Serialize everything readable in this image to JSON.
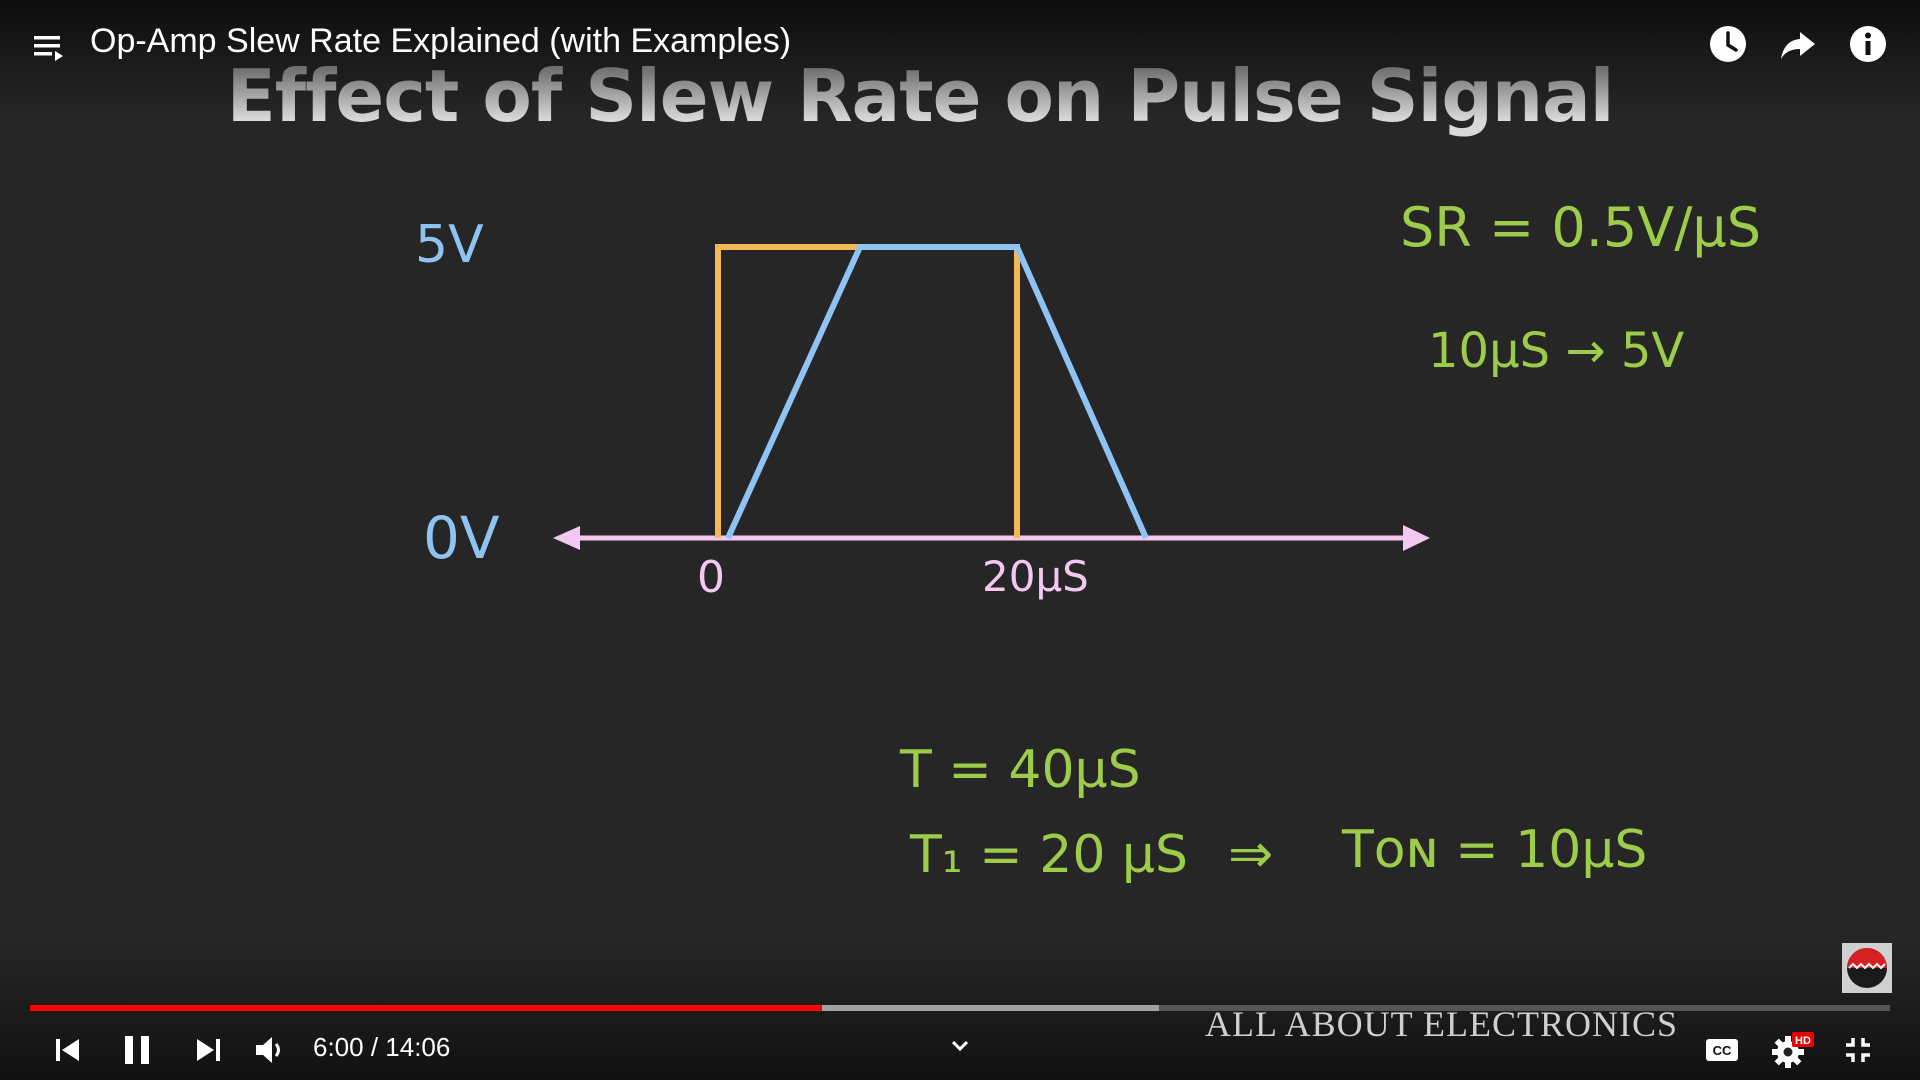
{
  "player": {
    "video_title": "Op-Amp Slew Rate Explained (with Examples)",
    "current_time": "6:00",
    "separator": " / ",
    "duration": "14:06",
    "progress_fraction": 0.426,
    "buffered_fraction": 0.607,
    "accent_color": "#ff0000",
    "icons": {
      "playlist": "playlist-icon",
      "watch_later": "clock-icon",
      "share": "share-icon",
      "info": "info-icon",
      "previous": "skip-previous-icon",
      "pause": "pause-icon",
      "next": "skip-next-icon",
      "volume": "volume-icon",
      "chapters": "chevron-down-icon",
      "captions": "cc-icon",
      "settings": "gear-icon",
      "hd_badge": "HD",
      "exit_fullscreen": "exit-fullscreen-icon"
    }
  },
  "slide": {
    "title": "Effect of Slew Rate on Pulse Signal",
    "label_5v": "5V",
    "label_0v": "0V",
    "label_zero": "0",
    "label_20us": "20μS",
    "eq_sr": "SR = 0.5V/μS",
    "eq_10us": "10μS → 5V",
    "eq_t": "T = 40μS",
    "eq_t1": "T₁ = 20 μS",
    "implies": "⇒",
    "eq_ton": "Tᴏɴ = 10μS",
    "colors": {
      "input_pulse": "#f6b756",
      "output_wave": "#8fc3f3",
      "axis": "#f4c9f1",
      "notes": "#9ccc4a"
    },
    "watermark": "ALL ABOUT ELECTRONICS"
  }
}
